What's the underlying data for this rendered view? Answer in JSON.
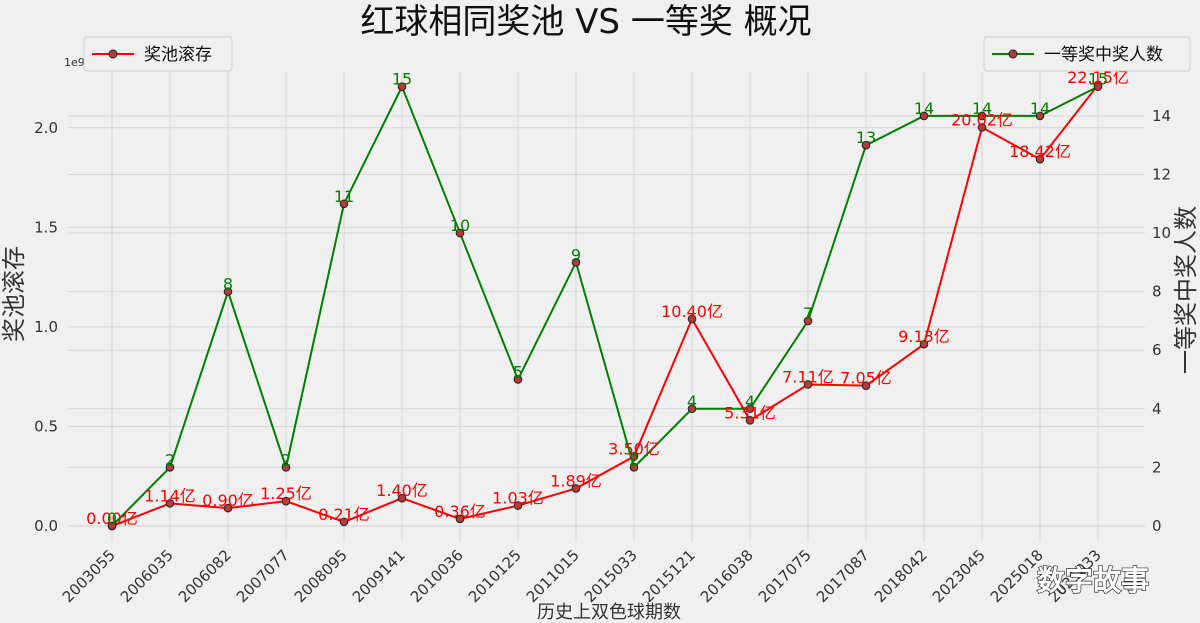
{
  "chart_data": {
    "type": "line",
    "title": "红球相同奖池 VS 一等奖 概况",
    "xlabel": "历史上双色球期数",
    "ylabel_left": "奖池滚存",
    "ylabel_right": "一等奖中奖人数",
    "left_axis_offset_label": "1e9",
    "categories": [
      "2003055",
      "2006035",
      "2006082",
      "2007077",
      "2008095",
      "2009141",
      "2010036",
      "2010125",
      "2011015",
      "2015033",
      "2015121",
      "2016038",
      "2017075",
      "2017087",
      "2018042",
      "2023045",
      "2025018",
      "2025033"
    ],
    "ylim_left": [
      -0.08,
      2.28
    ],
    "ylim_right": [
      -0.55,
      15.5
    ],
    "yticks_left": [
      0.0,
      0.5,
      1.0,
      1.5,
      2.0
    ],
    "ytick_labels_left": [
      "0.0",
      "0.5",
      "1.0",
      "1.5",
      "2.0"
    ],
    "yticks_right": [
      0,
      2,
      4,
      6,
      8,
      10,
      12,
      14
    ],
    "ytick_labels_right": [
      "0",
      "2",
      "4",
      "6",
      "8",
      "10",
      "12",
      "14"
    ],
    "grid": true,
    "series": [
      {
        "name": "奖池滚存",
        "axis": "left",
        "color": "#ff0000",
        "values": [
          0.0,
          114000000.0,
          90000000.0,
          125000000.0,
          21000000.0,
          140000000.0,
          36000000.0,
          103000000.0,
          189000000.0,
          350000000.0,
          1040000000.0,
          531000000.0,
          711000000.0,
          705000000.0,
          913000000.0,
          2002000000.0,
          1842000000.0,
          2215000000.0
        ],
        "labels": [
          "0.00亿",
          "1.14亿",
          "0.90亿",
          "1.25亿",
          "0.21亿",
          "1.40亿",
          "0.36亿",
          "1.03亿",
          "1.89亿",
          "3.50亿",
          "10.40亿",
          "5.31亿",
          "7.11亿",
          "7.05亿",
          "9.13亿",
          "20.02亿",
          "18.42亿",
          "22.15亿"
        ],
        "legend_loc": "upper left"
      },
      {
        "name": "一等奖中奖人数",
        "axis": "right",
        "color": "#008000",
        "values": [
          0,
          2,
          8,
          2,
          11,
          15,
          10,
          5,
          9,
          2,
          4,
          4,
          7,
          13,
          14,
          14,
          14,
          15
        ],
        "labels": [
          "0",
          "2",
          "8",
          "2",
          "11",
          "15",
          "10",
          "5",
          "9",
          "2",
          "4",
          "4",
          "7",
          "13",
          "14",
          "14",
          "14",
          "15"
        ],
        "legend_loc": "upper right"
      }
    ]
  },
  "watermark": "数字故事"
}
